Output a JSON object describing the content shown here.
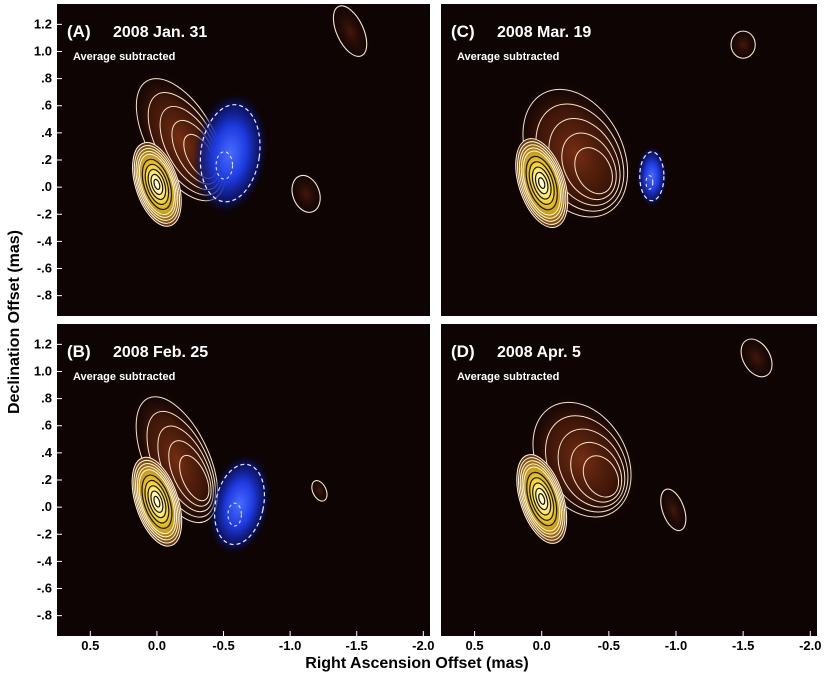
{
  "chart_data": {
    "type": "heatmap",
    "xlabel": "Right Ascension Offset (mas)",
    "ylabel": "Declination Offset (mas)",
    "xlim": [
      0.75,
      -2.05
    ],
    "ylim": [
      -0.95,
      1.35
    ],
    "x_ticks": [
      {
        "value": 0.5,
        "label": "0.5"
      },
      {
        "value": 0.0,
        "label": "0.0"
      },
      {
        "value": -0.5,
        "label": "-0.5"
      },
      {
        "value": -1.0,
        "label": "-1.0"
      },
      {
        "value": -1.5,
        "label": "-1.5"
      },
      {
        "value": -2.0,
        "label": "-2.0"
      }
    ],
    "y_ticks": [
      {
        "value": 1.2,
        "label": "1.2"
      },
      {
        "value": 1.0,
        "label": "1.0"
      },
      {
        "value": 0.8,
        "label": ".8"
      },
      {
        "value": 0.6,
        "label": ".6"
      },
      {
        "value": 0.4,
        "label": ".4"
      },
      {
        "value": 0.2,
        "label": ".2"
      },
      {
        "value": 0.0,
        "label": ".0"
      },
      {
        "value": -0.2,
        "label": "-.2"
      },
      {
        "value": -0.4,
        "label": "-.4"
      },
      {
        "value": -0.6,
        "label": "-.6"
      },
      {
        "value": -0.8,
        "label": "-.8"
      }
    ],
    "panels": [
      {
        "id": "A",
        "letter": "(A)",
        "date": "2008 Jan. 31",
        "note": "Average subtracted",
        "core": {
          "x": 0.0,
          "y": 0.02,
          "rx": 0.16,
          "ry": 0.32
        },
        "jet": {
          "x": -0.18,
          "y": 0.35,
          "rx": 0.25,
          "ry": 0.5,
          "rot": -30
        },
        "blobs": [
          {
            "kind": "neg",
            "x": -0.55,
            "y": 0.25,
            "rx": 0.22,
            "ry": 0.36,
            "rot": 8
          },
          {
            "kind": "pos",
            "x": -1.12,
            "y": -0.05,
            "rx": 0.1,
            "ry": 0.14,
            "rot": -20
          },
          {
            "kind": "pos",
            "x": -1.45,
            "y": 1.15,
            "rx": 0.1,
            "ry": 0.2,
            "rot": -25
          }
        ]
      },
      {
        "id": "B",
        "letter": "(B)",
        "date": "2008 Feb. 25",
        "note": "Average subtracted",
        "core": {
          "x": 0.0,
          "y": 0.04,
          "rx": 0.16,
          "ry": 0.34
        },
        "jet": {
          "x": -0.15,
          "y": 0.35,
          "rx": 0.24,
          "ry": 0.5,
          "rot": -25
        },
        "blobs": [
          {
            "kind": "neg",
            "x": -0.62,
            "y": 0.02,
            "rx": 0.18,
            "ry": 0.3,
            "rot": 12
          },
          {
            "kind": "pos",
            "x": -1.22,
            "y": 0.12,
            "rx": 0.05,
            "ry": 0.08,
            "rot": -25
          }
        ]
      },
      {
        "id": "C",
        "letter": "(C)",
        "date": "2008 Mar. 19",
        "note": "Average subtracted",
        "core": {
          "x": 0.0,
          "y": 0.03,
          "rx": 0.17,
          "ry": 0.34
        },
        "jet": {
          "x": -0.25,
          "y": 0.25,
          "rx": 0.35,
          "ry": 0.5,
          "rot": -28
        },
        "blobs": [
          {
            "kind": "neg",
            "x": -0.82,
            "y": 0.08,
            "rx": 0.09,
            "ry": 0.18,
            "rot": 0
          },
          {
            "kind": "pos",
            "x": -1.5,
            "y": 1.05,
            "rx": 0.09,
            "ry": 0.1,
            "rot": 0
          }
        ]
      },
      {
        "id": "D",
        "letter": "(D)",
        "date": "2008 Apr. 5",
        "note": "Average subtracted",
        "core": {
          "x": 0.0,
          "y": 0.06,
          "rx": 0.16,
          "ry": 0.34
        },
        "jet": {
          "x": -0.3,
          "y": 0.35,
          "rx": 0.33,
          "ry": 0.45,
          "rot": -30
        },
        "blobs": [
          {
            "kind": "pos",
            "x": -0.98,
            "y": -0.02,
            "rx": 0.08,
            "ry": 0.16,
            "rot": -20
          },
          {
            "kind": "pos",
            "x": -1.6,
            "y": 1.1,
            "rx": 0.1,
            "ry": 0.15,
            "rot": -30
          }
        ]
      }
    ]
  }
}
